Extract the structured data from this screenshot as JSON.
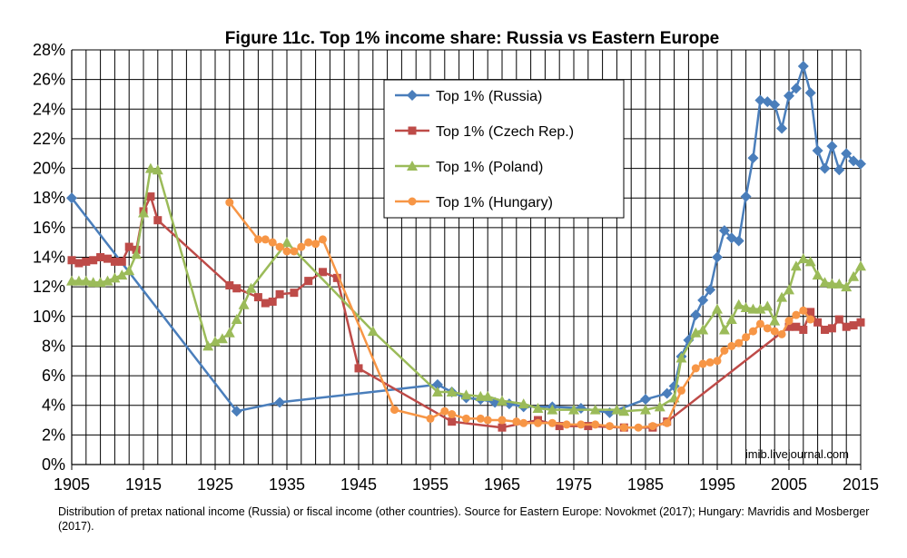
{
  "chart_data": {
    "type": "line",
    "title": "Figure 11c. Top 1% income share: Russia vs Eastern Europe",
    "xlabel": "",
    "ylabel": "",
    "xlim": [
      1905,
      2015
    ],
    "ylim": [
      0,
      0.28
    ],
    "x_ticks": [
      "1905",
      "1915",
      "1925",
      "1935",
      "1945",
      "1955",
      "1965",
      "1975",
      "1985",
      "1995",
      "2005",
      "2015"
    ],
    "y_ticks": [
      "0%",
      "2%",
      "4%",
      "6%",
      "8%",
      "10%",
      "12%",
      "14%",
      "16%",
      "18%",
      "20%",
      "22%",
      "24%",
      "26%",
      "28%"
    ],
    "grid": true,
    "legend_position": "top-right",
    "watermark": "imib.livejournal.com",
    "caption": "Distribution of pretax national income (Russia) or fiscal income (other countries). Source for Eastern Europe: Novokmet (2017); Hungary: Mavridis and Mosberger (2017).",
    "series": [
      {
        "name": "Top 1% (Russia)",
        "color": "#4A7EBB",
        "marker": "diamond",
        "points": [
          [
            1905,
            0.18
          ],
          [
            1928,
            0.036
          ],
          [
            1934,
            0.042
          ],
          [
            1956,
            0.054
          ],
          [
            1958,
            0.049
          ],
          [
            1960,
            0.045
          ],
          [
            1962,
            0.044
          ],
          [
            1964,
            0.042
          ],
          [
            1966,
            0.041
          ],
          [
            1968,
            0.039
          ],
          [
            1972,
            0.039
          ],
          [
            1976,
            0.038
          ],
          [
            1980,
            0.035
          ],
          [
            1985,
            0.044
          ],
          [
            1988,
            0.048
          ],
          [
            1989,
            0.053
          ],
          [
            1990,
            0.073
          ],
          [
            1991,
            0.084
          ],
          [
            1992,
            0.101
          ],
          [
            1993,
            0.111
          ],
          [
            1994,
            0.118
          ],
          [
            1995,
            0.14
          ],
          [
            1996,
            0.158
          ],
          [
            1997,
            0.153
          ],
          [
            1998,
            0.151
          ],
          [
            1999,
            0.181
          ],
          [
            2000,
            0.207
          ],
          [
            2001,
            0.246
          ],
          [
            2002,
            0.245
          ],
          [
            2003,
            0.243
          ],
          [
            2004,
            0.227
          ],
          [
            2005,
            0.249
          ],
          [
            2006,
            0.254
          ],
          [
            2007,
            0.269
          ],
          [
            2008,
            0.251
          ],
          [
            2009,
            0.212
          ],
          [
            2010,
            0.2
          ],
          [
            2011,
            0.215
          ],
          [
            2012,
            0.199
          ],
          [
            2013,
            0.21
          ],
          [
            2014,
            0.205
          ],
          [
            2015,
            0.203
          ]
        ]
      },
      {
        "name": "Top 1% (Czech Rep.)",
        "color": "#BE4B48",
        "marker": "square",
        "points": [
          [
            1905,
            0.138
          ],
          [
            1906,
            0.136
          ],
          [
            1907,
            0.137
          ],
          [
            1908,
            0.138
          ],
          [
            1909,
            0.14
          ],
          [
            1910,
            0.139
          ],
          [
            1911,
            0.137
          ],
          [
            1912,
            0.137
          ],
          [
            1913,
            0.147
          ],
          [
            1914,
            0.145
          ],
          [
            1915,
            0.171
          ],
          [
            1916,
            0.181
          ],
          [
            1917,
            0.165
          ],
          [
            1927,
            0.121
          ],
          [
            1928,
            0.119
          ],
          [
            1931,
            0.113
          ],
          [
            1932,
            0.109
          ],
          [
            1933,
            0.11
          ],
          [
            1934,
            0.115
          ],
          [
            1936,
            0.116
          ],
          [
            1938,
            0.124
          ],
          [
            1940,
            0.13
          ],
          [
            1942,
            0.126
          ],
          [
            1945,
            0.065
          ],
          [
            1958,
            0.029
          ],
          [
            1965,
            0.025
          ],
          [
            1970,
            0.03
          ],
          [
            1973,
            0.026
          ],
          [
            1977,
            0.026
          ],
          [
            1982,
            0.025
          ],
          [
            1986,
            0.025
          ],
          [
            1988,
            0.029
          ],
          [
            2005,
            0.093
          ],
          [
            2006,
            0.093
          ],
          [
            2007,
            0.091
          ],
          [
            2008,
            0.103
          ],
          [
            2009,
            0.096
          ],
          [
            2010,
            0.091
          ],
          [
            2011,
            0.092
          ],
          [
            2012,
            0.098
          ],
          [
            2013,
            0.093
          ],
          [
            2014,
            0.094
          ],
          [
            2015,
            0.096
          ]
        ]
      },
      {
        "name": "Top 1% (Poland)",
        "color": "#9BBB59",
        "marker": "triangle",
        "points": [
          [
            1905,
            0.124
          ],
          [
            1906,
            0.124
          ],
          [
            1907,
            0.124
          ],
          [
            1908,
            0.123
          ],
          [
            1909,
            0.123
          ],
          [
            1910,
            0.124
          ],
          [
            1911,
            0.126
          ],
          [
            1912,
            0.128
          ],
          [
            1913,
            0.131
          ],
          [
            1914,
            0.142
          ],
          [
            1915,
            0.17
          ],
          [
            1916,
            0.2
          ],
          [
            1917,
            0.199
          ],
          [
            1924,
            0.08
          ],
          [
            1925,
            0.083
          ],
          [
            1926,
            0.085
          ],
          [
            1927,
            0.089
          ],
          [
            1928,
            0.098
          ],
          [
            1929,
            0.108
          ],
          [
            1930,
            0.119
          ],
          [
            1935,
            0.15
          ],
          [
            1947,
            0.09
          ],
          [
            1956,
            0.049
          ],
          [
            1958,
            0.049
          ],
          [
            1960,
            0.047
          ],
          [
            1962,
            0.046
          ],
          [
            1963,
            0.046
          ],
          [
            1965,
            0.043
          ],
          [
            1968,
            0.041
          ],
          [
            1970,
            0.038
          ],
          [
            1972,
            0.037
          ],
          [
            1975,
            0.037
          ],
          [
            1978,
            0.037
          ],
          [
            1981,
            0.037
          ],
          [
            1982,
            0.036
          ],
          [
            1985,
            0.037
          ],
          [
            1987,
            0.039
          ],
          [
            1989,
            0.045
          ],
          [
            1990,
            0.072
          ],
          [
            1992,
            0.089
          ],
          [
            1993,
            0.091
          ],
          [
            1995,
            0.105
          ],
          [
            1996,
            0.091
          ],
          [
            1997,
            0.098
          ],
          [
            1998,
            0.108
          ],
          [
            1999,
            0.106
          ],
          [
            2000,
            0.105
          ],
          [
            2001,
            0.105
          ],
          [
            2002,
            0.107
          ],
          [
            2003,
            0.097
          ],
          [
            2004,
            0.113
          ],
          [
            2005,
            0.118
          ],
          [
            2006,
            0.134
          ],
          [
            2007,
            0.139
          ],
          [
            2008,
            0.137
          ],
          [
            2009,
            0.128
          ],
          [
            2010,
            0.123
          ],
          [
            2011,
            0.122
          ],
          [
            2012,
            0.122
          ],
          [
            2013,
            0.12
          ],
          [
            2014,
            0.127
          ],
          [
            2015,
            0.134
          ]
        ]
      },
      {
        "name": "Top 1% (Hungary)",
        "color": "#F79646",
        "marker": "circle",
        "points": [
          [
            1927,
            0.177
          ],
          [
            1931,
            0.152
          ],
          [
            1932,
            0.152
          ],
          [
            1933,
            0.15
          ],
          [
            1934,
            0.147
          ],
          [
            1935,
            0.144
          ],
          [
            1936,
            0.144
          ],
          [
            1937,
            0.147
          ],
          [
            1938,
            0.15
          ],
          [
            1939,
            0.149
          ],
          [
            1940,
            0.152
          ],
          [
            1950,
            0.037
          ],
          [
            1955,
            0.031
          ],
          [
            1957,
            0.036
          ],
          [
            1958,
            0.034
          ],
          [
            1960,
            0.031
          ],
          [
            1962,
            0.031
          ],
          [
            1963,
            0.03
          ],
          [
            1965,
            0.03
          ],
          [
            1967,
            0.029
          ],
          [
            1968,
            0.028
          ],
          [
            1970,
            0.028
          ],
          [
            1972,
            0.028
          ],
          [
            1974,
            0.027
          ],
          [
            1976,
            0.027
          ],
          [
            1978,
            0.027
          ],
          [
            1980,
            0.026
          ],
          [
            1982,
            0.025
          ],
          [
            1984,
            0.025
          ],
          [
            1986,
            0.026
          ],
          [
            1988,
            0.028
          ],
          [
            1990,
            0.05
          ],
          [
            1992,
            0.065
          ],
          [
            1993,
            0.068
          ],
          [
            1994,
            0.069
          ],
          [
            1995,
            0.07
          ],
          [
            1996,
            0.077
          ],
          [
            1997,
            0.08
          ],
          [
            1998,
            0.082
          ],
          [
            1999,
            0.086
          ],
          [
            2000,
            0.09
          ],
          [
            2001,
            0.095
          ],
          [
            2002,
            0.092
          ],
          [
            2003,
            0.09
          ],
          [
            2004,
            0.088
          ],
          [
            2005,
            0.097
          ],
          [
            2006,
            0.101
          ],
          [
            2007,
            0.104
          ],
          [
            2008,
            0.098
          ]
        ]
      }
    ]
  }
}
